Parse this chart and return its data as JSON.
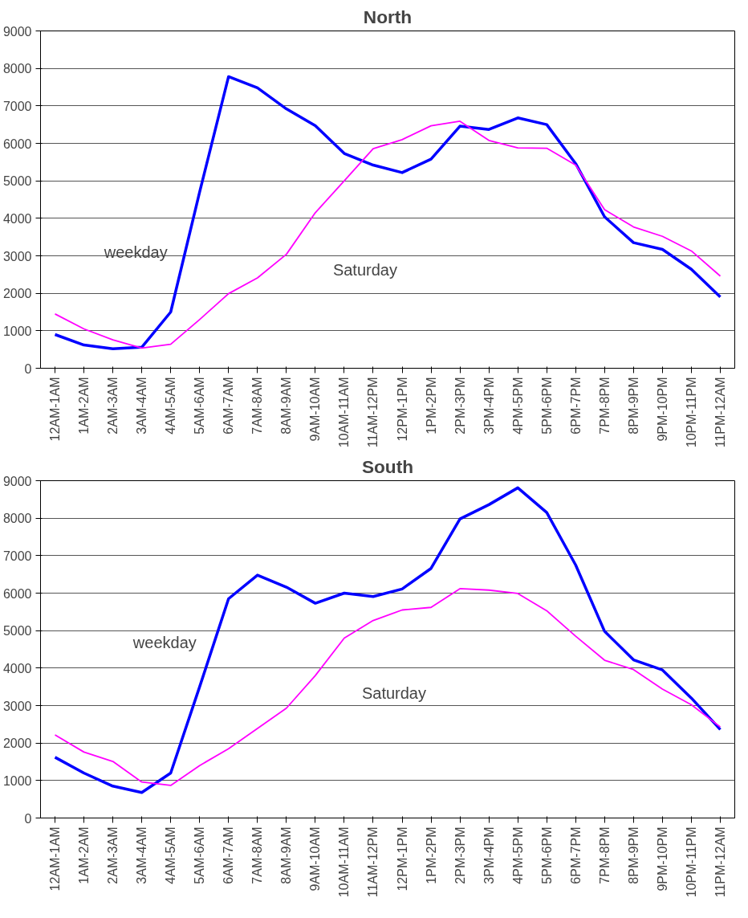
{
  "chart_data": [
    {
      "type": "line",
      "title": "North",
      "categories": [
        "12AM-1AM",
        "1AM-2AM",
        "2AM-3AM",
        "3AM-4AM",
        "4AM-5AM",
        "5AM-6AM",
        "6AM-7AM",
        "7AM-8AM",
        "8AM-9AM",
        "9AM-10AM",
        "10AM-11AM",
        "11AM-12PM",
        "12PM-1PM",
        "1PM-2PM",
        "2PM-3PM",
        "3PM-4PM",
        "4PM-5PM",
        "5PM-6PM",
        "6PM-7PM",
        "7PM-8PM",
        "8PM-9PM",
        "9PM-10PM",
        "10PM-11PM",
        "11PM-12AM"
      ],
      "series": [
        {
          "name": "weekday",
          "color": "#0000ff",
          "values": [
            900,
            620,
            520,
            560,
            1500,
            4700,
            7780,
            7480,
            6920,
            6470,
            5730,
            5420,
            5220,
            5580,
            6460,
            6370,
            6680,
            6500,
            5460,
            4040,
            3350,
            3170,
            2640,
            1900
          ]
        },
        {
          "name": "Saturday",
          "color": "#ff00ff",
          "values": [
            1450,
            1050,
            760,
            540,
            640,
            1300,
            1990,
            2410,
            3040,
            4150,
            5000,
            5860,
            6100,
            6470,
            6590,
            6080,
            5880,
            5870,
            5420,
            4230,
            3770,
            3520,
            3130,
            2460
          ]
        }
      ],
      "ylim": [
        0,
        9000
      ],
      "yticks": [
        0,
        1000,
        2000,
        3000,
        4000,
        5000,
        6000,
        7000,
        8000,
        9000
      ],
      "grid": "y",
      "line_style": "solid"
    },
    {
      "type": "line",
      "title": "South",
      "categories": [
        "12AM-1AM",
        "1AM-2AM",
        "2AM-3AM",
        "3AM-4AM",
        "4AM-5AM",
        "5AM-6AM",
        "6AM-7AM",
        "7AM-8AM",
        "8AM-9AM",
        "9AM-10AM",
        "10AM-11AM",
        "11AM-12PM",
        "12PM-1PM",
        "1PM-2PM",
        "2PM-3PM",
        "3PM-4PM",
        "4PM-5PM",
        "5PM-6PM",
        "6PM-7PM",
        "7PM-8PM",
        "8PM-9PM",
        "9PM-10PM",
        "10PM-11PM",
        "11PM-12AM"
      ],
      "series": [
        {
          "name": "weekday",
          "color": "#0000ff",
          "values": [
            1620,
            1200,
            850,
            680,
            1200,
            3500,
            5850,
            6480,
            6160,
            5730,
            6000,
            5910,
            6110,
            6660,
            7980,
            8360,
            8810,
            8150,
            6750,
            4980,
            4220,
            3950,
            3200,
            2360
          ]
        },
        {
          "name": "Saturday",
          "color": "#ff00ff",
          "values": [
            2220,
            1760,
            1510,
            960,
            870,
            1400,
            1850,
            2390,
            2930,
            3800,
            4800,
            5270,
            5550,
            5620,
            6120,
            6080,
            5990,
            5530,
            4850,
            4210,
            3960,
            3440,
            3020,
            2430
          ]
        }
      ],
      "ylim": [
        0,
        9000
      ],
      "yticks": [
        0,
        1000,
        2000,
        3000,
        4000,
        5000,
        6000,
        7000,
        8000,
        9000
      ],
      "grid": "y",
      "line_style": "solid"
    }
  ]
}
